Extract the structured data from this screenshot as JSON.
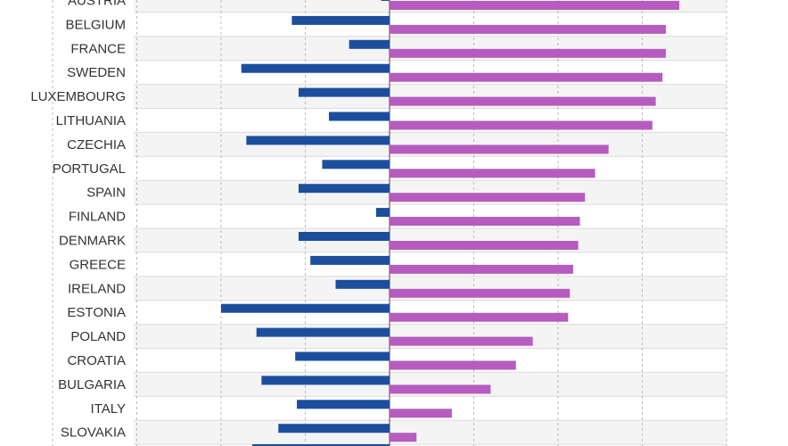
{
  "chart_data": {
    "type": "bar",
    "orientation": "horizontal",
    "categories": [
      "AUSTRIA",
      "BELGIUM",
      "FRANCE",
      "SWEDEN",
      "LUXEMBOURG",
      "LITHUANIA",
      "CZECHIA",
      "PORTUGAL",
      "SPAIN",
      "FINLAND",
      "DENMARK",
      "GREECE",
      "IRELAND",
      "ESTONIA",
      "POLAND",
      "CROATIA",
      "BULGARIA",
      "ITALY",
      "SLOVAKIA"
    ],
    "series": [
      {
        "color": "#1b4f9c",
        "values": [
          -0.5,
          -5.8,
          -2.4,
          -8.8,
          -5.4,
          -3.6,
          -8.5,
          -4.0,
          -5.4,
          -0.8,
          -5.4,
          -4.7,
          -3.2,
          -10.0,
          -7.9,
          -5.6,
          -7.6,
          -5.5,
          -6.6
        ]
      },
      {
        "color": "#b65bbf",
        "values": [
          17.2,
          16.4,
          16.4,
          16.2,
          15.8,
          15.6,
          13.0,
          12.2,
          11.6,
          11.3,
          11.2,
          10.9,
          10.7,
          10.6,
          8.5,
          7.5,
          6.0,
          3.7,
          1.6
        ]
      }
    ],
    "xlim": [
      -23,
      20
    ],
    "grid": true,
    "gridlines": [
      -20,
      -15,
      -10,
      -5,
      0,
      5,
      10,
      15,
      20
    ]
  }
}
